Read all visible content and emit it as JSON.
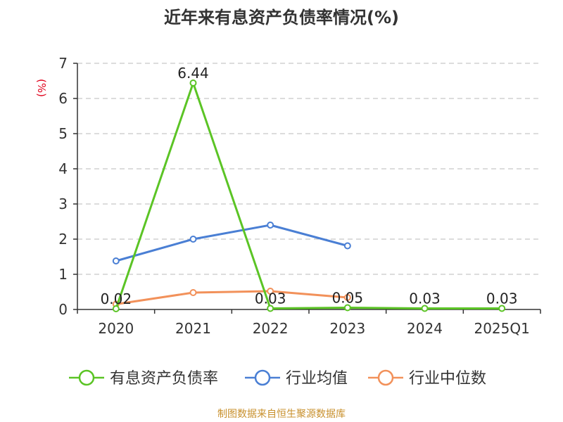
{
  "chart_data": {
    "type": "line",
    "title": "近年来有息资产负债率情况(%)",
    "ylabel": "(%)",
    "categories": [
      "2020",
      "2021",
      "2022",
      "2023",
      "2024",
      "2025Q1"
    ],
    "ylim": [
      0,
      7
    ],
    "yticks": [
      "0",
      "1",
      "2",
      "3",
      "4",
      "5",
      "6",
      "7"
    ],
    "grid": true,
    "legend_position": "bottom",
    "series": [
      {
        "name": "有息资产负债率",
        "color": "#5bc425",
        "values": [
          0.02,
          6.44,
          0.03,
          0.05,
          0.03,
          0.03
        ],
        "labels": [
          "0.02",
          "6.44",
          "0.03",
          "0.05",
          "0.03",
          "0.03"
        ]
      },
      {
        "name": "行业均值",
        "color": "#4a7fd4",
        "values": [
          1.38,
          2.0,
          2.4,
          1.81,
          null,
          null
        ]
      },
      {
        "name": "行业中位数",
        "color": "#f2915a",
        "values": [
          0.15,
          0.48,
          0.52,
          0.34,
          null,
          null
        ]
      }
    ],
    "ylabel_color": "#e0001b"
  },
  "source": "制图数据来自恒生聚源数据库",
  "source_color": "#c8902c"
}
